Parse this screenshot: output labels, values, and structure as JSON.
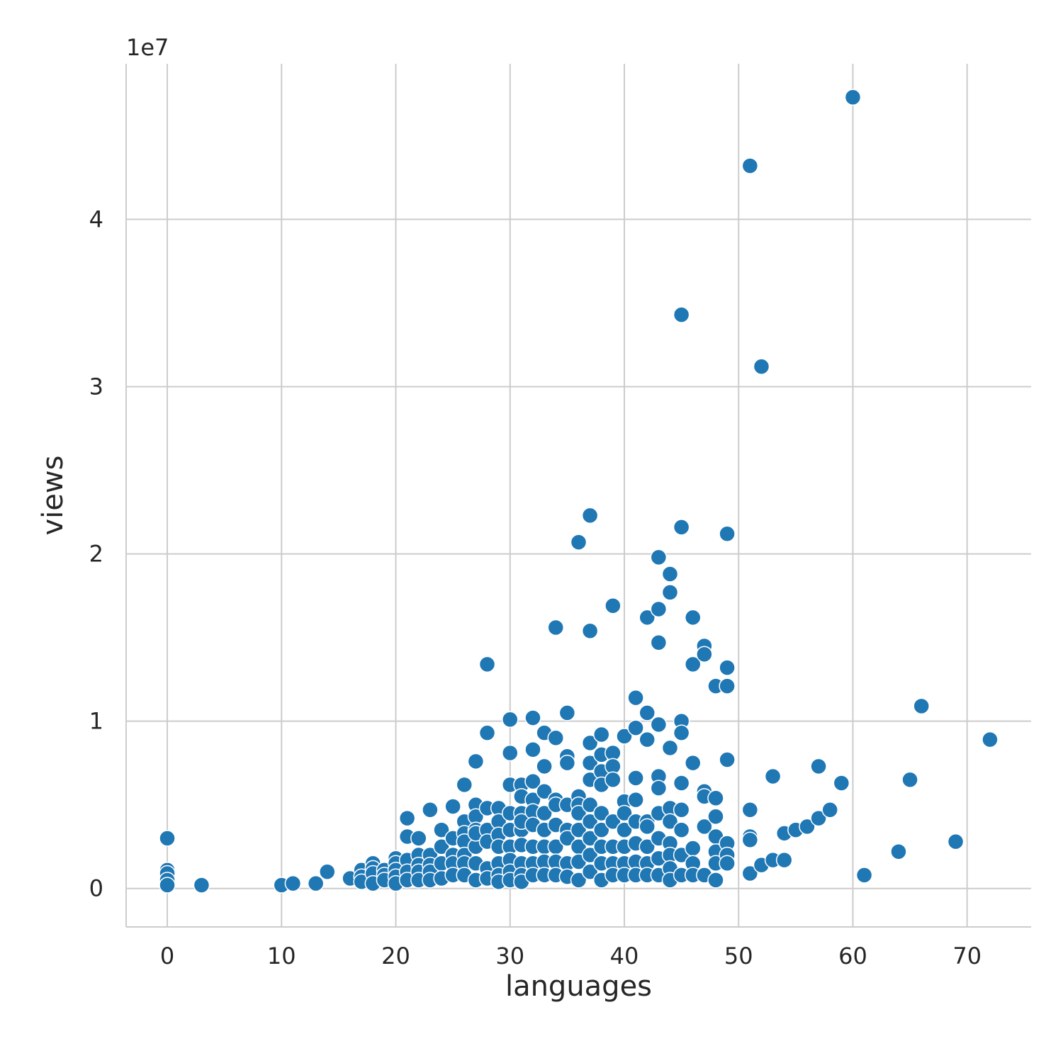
{
  "chart_data": {
    "type": "scatter",
    "title": "",
    "xlabel": "languages",
    "ylabel": "views",
    "y_offset_label": "1e7",
    "xlim": [
      -3.6,
      75.6
    ],
    "ylim": [
      -0.23,
      4.93
    ],
    "x_ticks": [
      0,
      10,
      20,
      30,
      40,
      50,
      60,
      70
    ],
    "x_tick_labels": [
      "0",
      "10",
      "20",
      "30",
      "40",
      "50",
      "60",
      "70"
    ],
    "y_ticks": [
      0,
      1,
      2,
      3,
      4
    ],
    "y_tick_labels": [
      "0",
      "1",
      "2",
      "3",
      "4"
    ],
    "grid": true,
    "color": "#1f77b4",
    "series": [
      {
        "x": [
          0,
          0,
          0,
          0,
          0,
          3,
          10,
          11,
          13,
          14,
          16,
          17,
          17,
          17,
          18,
          18,
          18,
          18,
          19,
          19,
          19,
          20,
          20,
          20,
          20,
          20,
          21,
          21,
          21,
          21,
          21,
          22,
          22,
          22,
          22,
          22,
          23,
          23,
          23,
          23,
          23,
          24,
          24,
          24,
          24,
          25,
          25,
          25,
          25,
          25,
          26,
          26,
          26,
          26,
          26,
          26,
          26,
          27,
          27,
          27,
          27,
          27,
          27,
          27,
          27,
          28,
          28,
          28,
          28,
          28,
          28,
          28,
          29,
          29,
          29,
          29,
          29,
          29,
          29,
          30,
          30,
          30,
          30,
          30,
          30,
          30,
          30,
          30,
          30,
          31,
          31,
          31,
          31,
          31,
          31,
          31,
          31,
          31,
          32,
          32,
          32,
          32,
          32,
          32,
          32,
          32,
          32,
          33,
          33,
          33,
          33,
          33,
          33,
          33,
          33,
          34,
          34,
          34,
          34,
          34,
          34,
          34,
          34,
          35,
          35,
          35,
          35,
          35,
          35,
          35,
          35,
          36,
          36,
          36,
          36,
          36,
          36,
          36,
          36,
          37,
          37,
          37,
          37,
          37,
          37,
          37,
          37,
          37,
          37,
          38,
          38,
          38,
          38,
          38,
          38,
          38,
          38,
          38,
          39,
          39,
          39,
          39,
          39,
          39,
          39,
          39,
          40,
          40,
          40,
          40,
          40,
          40,
          40,
          41,
          41,
          41,
          41,
          41,
          41,
          41,
          41,
          42,
          42,
          42,
          42,
          42,
          42,
          42,
          42,
          43,
          43,
          43,
          43,
          43,
          43,
          43,
          43,
          43,
          43,
          44,
          44,
          44,
          44,
          44,
          44,
          44,
          44,
          44,
          45,
          45,
          45,
          45,
          45,
          45,
          45,
          45,
          45,
          46,
          46,
          46,
          46,
          46,
          46,
          47,
          47,
          47,
          47,
          47,
          47,
          48,
          48,
          48,
          48,
          48,
          48,
          48,
          49,
          49,
          49,
          49,
          49,
          49,
          49,
          51,
          51,
          51,
          51,
          51,
          52,
          52,
          53,
          53,
          54,
          54,
          55,
          56,
          57,
          57,
          58,
          59,
          60,
          61,
          64,
          65,
          66,
          69,
          72
        ],
        "y": [
          0.3,
          0.11,
          0.09,
          0.05,
          0.02,
          0.02,
          0.02,
          0.03,
          0.03,
          0.1,
          0.06,
          0.11,
          0.07,
          0.04,
          0.15,
          0.12,
          0.09,
          0.03,
          0.11,
          0.08,
          0.05,
          0.18,
          0.15,
          0.11,
          0.07,
          0.03,
          0.42,
          0.31,
          0.17,
          0.1,
          0.05,
          0.3,
          0.2,
          0.14,
          0.1,
          0.05,
          0.47,
          0.2,
          0.14,
          0.1,
          0.05,
          0.35,
          0.25,
          0.15,
          0.06,
          0.49,
          0.3,
          0.2,
          0.15,
          0.08,
          0.62,
          0.4,
          0.33,
          0.28,
          0.2,
          0.15,
          0.08,
          0.76,
          0.5,
          0.43,
          0.35,
          0.25,
          0.15,
          0.05,
          0.33,
          1.34,
          0.93,
          0.48,
          0.35,
          0.28,
          0.12,
          0.06,
          0.48,
          0.4,
          0.32,
          0.25,
          0.15,
          0.08,
          0.04,
          1.01,
          0.81,
          0.62,
          0.45,
          0.35,
          0.25,
          0.17,
          0.1,
          0.05,
          0.62,
          0.62,
          0.55,
          0.45,
          0.35,
          0.26,
          0.15,
          0.08,
          0.04,
          0.4,
          1.02,
          0.83,
          0.64,
          0.53,
          0.46,
          0.38,
          0.25,
          0.15,
          0.08,
          0.93,
          0.73,
          0.58,
          0.45,
          0.35,
          0.25,
          0.16,
          0.08,
          1.56,
          0.9,
          0.53,
          0.5,
          0.38,
          0.25,
          0.16,
          0.08,
          1.05,
          0.79,
          0.75,
          0.5,
          0.35,
          0.3,
          0.15,
          0.07,
          2.07,
          0.55,
          0.5,
          0.45,
          0.35,
          0.25,
          0.16,
          0.05,
          2.23,
          1.54,
          0.87,
          0.75,
          0.65,
          0.5,
          0.4,
          0.3,
          0.2,
          0.1,
          0.92,
          0.8,
          0.7,
          0.62,
          0.45,
          0.35,
          0.25,
          0.15,
          0.05,
          1.69,
          0.81,
          0.73,
          0.65,
          0.4,
          0.25,
          0.15,
          0.08,
          0.91,
          0.52,
          0.45,
          0.35,
          0.25,
          0.15,
          0.08,
          1.14,
          0.96,
          0.66,
          0.53,
          0.4,
          0.27,
          0.16,
          0.08,
          1.62,
          1.05,
          0.89,
          0.4,
          0.37,
          0.25,
          0.15,
          0.08,
          1.98,
          1.67,
          1.47,
          0.98,
          0.67,
          0.6,
          0.45,
          0.3,
          0.18,
          0.08,
          1.88,
          1.77,
          0.84,
          0.48,
          0.4,
          0.27,
          0.2,
          0.12,
          0.05,
          3.43,
          2.16,
          1.0,
          0.93,
          0.63,
          0.47,
          0.35,
          0.2,
          0.08,
          1.62,
          1.34,
          0.75,
          0.24,
          0.15,
          0.08,
          1.45,
          1.4,
          0.58,
          0.55,
          0.37,
          0.08,
          1.21,
          0.54,
          0.43,
          0.31,
          0.22,
          0.15,
          0.05,
          2.12,
          1.32,
          1.21,
          0.77,
          0.27,
          0.2,
          0.15,
          4.32,
          0.47,
          0.31,
          0.29,
          0.09,
          3.12,
          0.14,
          0.67,
          0.17,
          0.33,
          0.17,
          0.35,
          0.37,
          0.73,
          0.42,
          0.47,
          0.63,
          4.73,
          0.08,
          0.22,
          0.65,
          1.09,
          0.28,
          0.89
        ]
      }
    ]
  }
}
